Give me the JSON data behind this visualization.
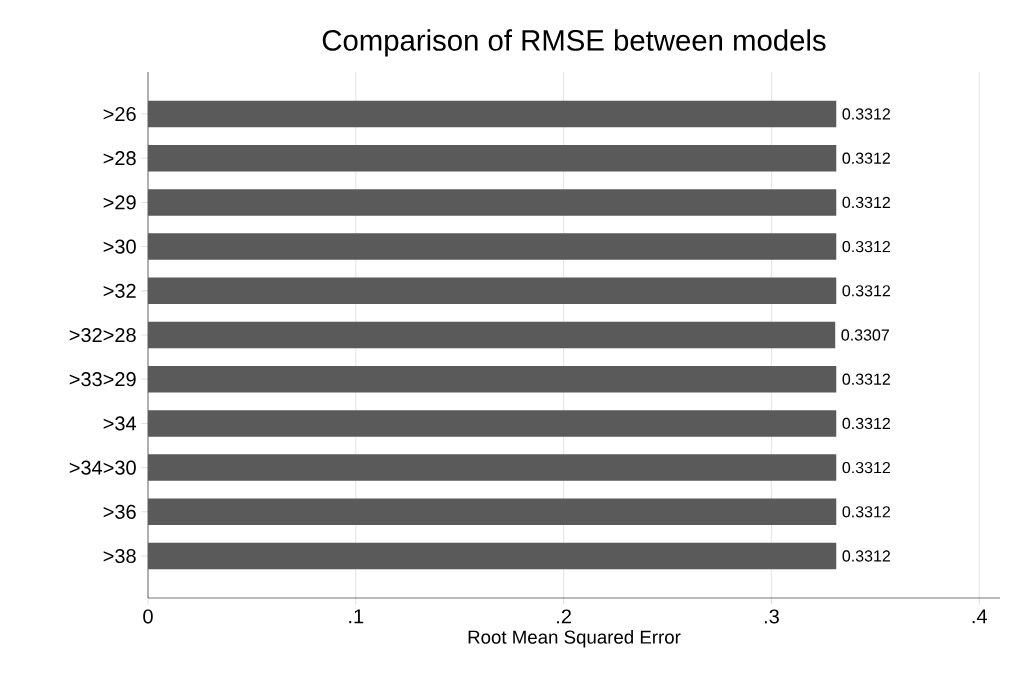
{
  "chart_data": {
    "type": "bar",
    "orientation": "horizontal",
    "title": "Comparison of RMSE between models",
    "xlabel": "Root Mean Squared Error",
    "categories": [
      ">26",
      ">28",
      ">29",
      ">30",
      ">32",
      ">32>28",
      ">33>29",
      ">34",
      ">34>30",
      ">36",
      ">38"
    ],
    "values": [
      0.3312,
      0.3312,
      0.3312,
      0.3312,
      0.3312,
      0.3307,
      0.3312,
      0.3312,
      0.3312,
      0.3312,
      0.3312
    ],
    "value_labels": [
      "0.3312",
      "0.3312",
      "0.3312",
      "0.3312",
      "0.3312",
      "0.3307",
      "0.3312",
      "0.3312",
      "0.3312",
      "0.3312",
      "0.3312"
    ],
    "color": "#5a5a5a",
    "xlim": [
      0,
      0.41
    ],
    "xticks": [
      0,
      {
        "value": 0.1,
        "label": ".1"
      },
      {
        "value": 0.2,
        "label": ".2"
      },
      {
        "value": 0.3,
        "label": ".3"
      },
      {
        "value": 0.4,
        "label": ".4"
      }
    ],
    "grid": "x"
  }
}
